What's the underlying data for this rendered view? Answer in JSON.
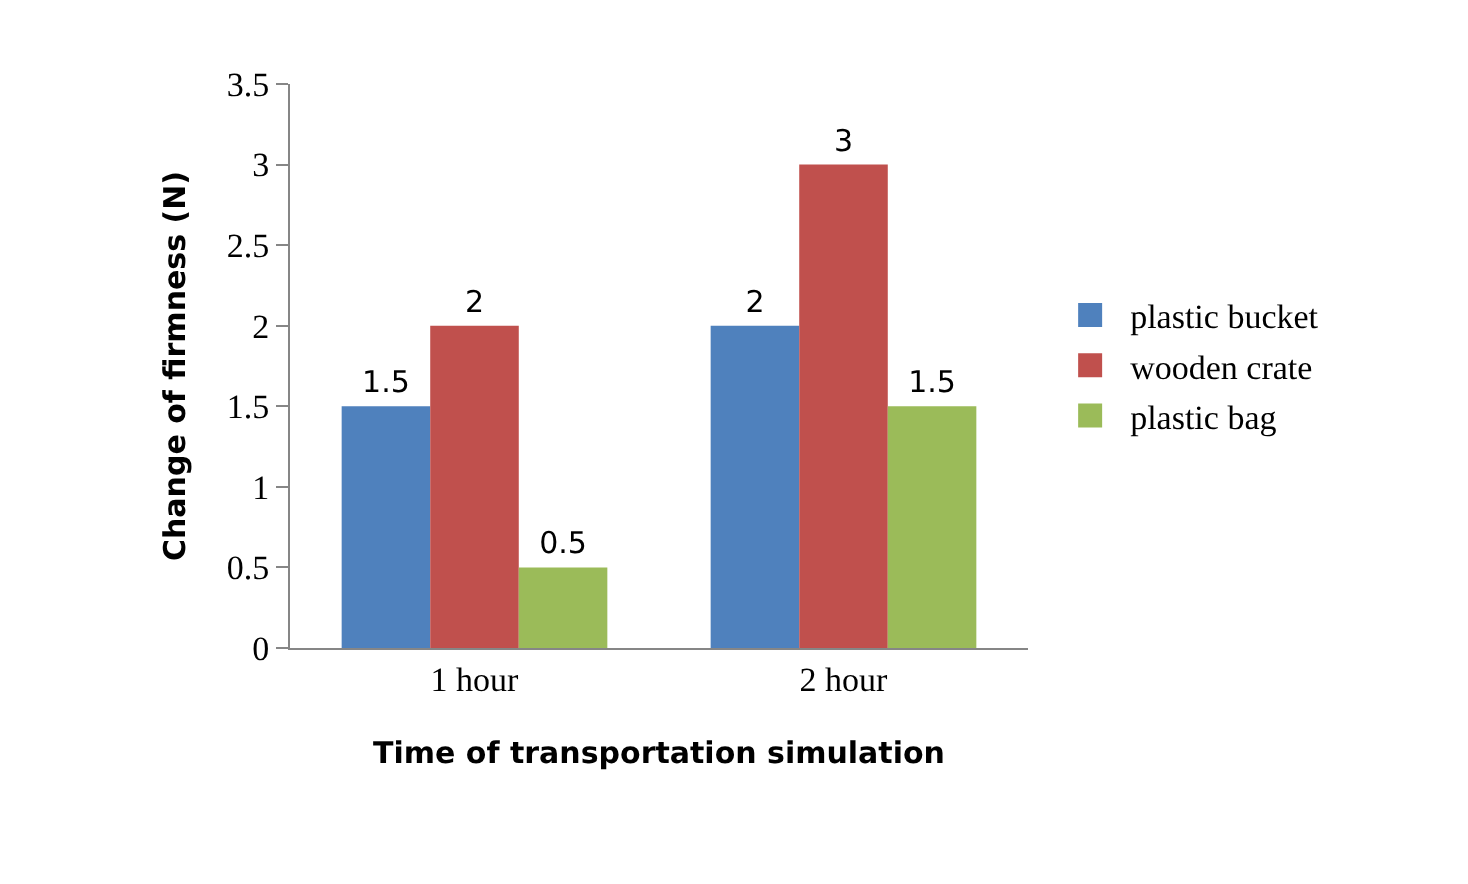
{
  "chart_data": {
    "type": "bar",
    "xlabel": "Time of transportation simulation",
    "ylabel": "Change of firmness (N)",
    "categories": [
      "1 hour",
      "2 hour"
    ],
    "series": [
      {
        "name": "plastic bucket",
        "color": "#4f81bd",
        "values": [
          1.5,
          2
        ]
      },
      {
        "name": "wooden crate",
        "color": "#c0504d",
        "values": [
          2,
          3
        ]
      },
      {
        "name": "plastic bag",
        "color": "#9bbb59",
        "values": [
          0.5,
          1.5
        ]
      }
    ],
    "ylim": [
      0,
      3.5
    ],
    "yticks": [
      0,
      0.5,
      1,
      1.5,
      2,
      2.5,
      3,
      3.5
    ],
    "legend": "right",
    "data_labels": true
  }
}
